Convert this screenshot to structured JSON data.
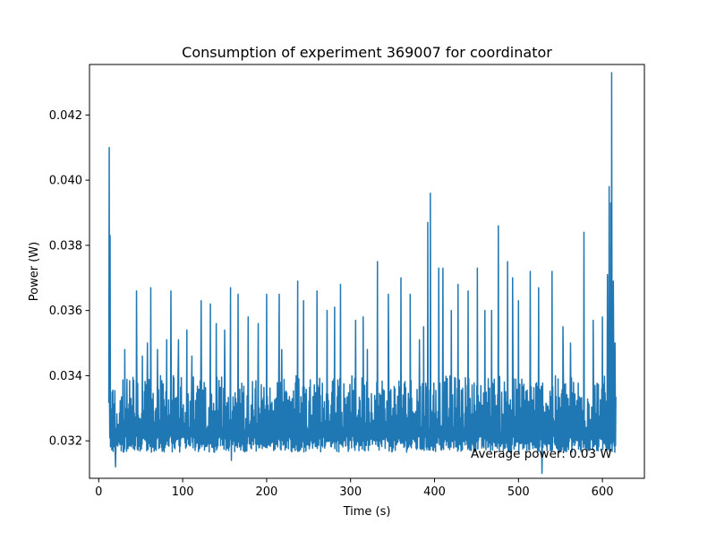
{
  "chart_data": {
    "type": "line",
    "title": "Consumption of experiment 369007 for coordinator",
    "xlabel": "Time (s)",
    "ylabel": "Power (W)",
    "xlim": [
      -11,
      650
    ],
    "ylim": [
      0.03085,
      0.04355
    ],
    "x_ticks": [
      0,
      100,
      200,
      300,
      400,
      500,
      600
    ],
    "y_ticks": [
      0.032,
      0.034,
      0.036,
      0.038,
      0.04,
      0.042
    ],
    "x_tick_labels": [
      "0",
      "100",
      "200",
      "300",
      "400",
      "500",
      "600"
    ],
    "y_tick_labels": [
      "0.032",
      "0.034",
      "0.036",
      "0.038",
      "0.040",
      "0.042"
    ],
    "annotation": "Average power: 0.03 W",
    "grid": false,
    "legend": "none",
    "series": [
      {
        "color": "#1f77b4",
        "x_start": 12,
        "x_end": 616,
        "baseline": 0.0318,
        "typical_peak": 0.0336,
        "peaks": [
          [
            12.5,
            0.041
          ],
          [
            13.5,
            0.0383
          ],
          [
            16,
            0.0335
          ],
          [
            20,
            0.0312
          ],
          [
            31,
            0.0348
          ],
          [
            45,
            0.0366
          ],
          [
            52,
            0.0346
          ],
          [
            58,
            0.035
          ],
          [
            62,
            0.0367
          ],
          [
            70,
            0.0348
          ],
          [
            81,
            0.0351
          ],
          [
            86,
            0.0366
          ],
          [
            95,
            0.0351
          ],
          [
            105,
            0.0354
          ],
          [
            111,
            0.0346
          ],
          [
            122,
            0.0363
          ],
          [
            133,
            0.0362
          ],
          [
            140,
            0.0356
          ],
          [
            150,
            0.0354
          ],
          [
            157,
            0.0367
          ],
          [
            158,
            0.0314
          ],
          [
            166,
            0.0365
          ],
          [
            178,
            0.0358
          ],
          [
            190,
            0.0356
          ],
          [
            200,
            0.0365
          ],
          [
            215,
            0.0365
          ],
          [
            218,
            0.0348
          ],
          [
            237,
            0.0369
          ],
          [
            244,
            0.0363
          ],
          [
            260,
            0.0366
          ],
          [
            272,
            0.036
          ],
          [
            281,
            0.0361
          ],
          [
            288,
            0.0368
          ],
          [
            306,
            0.0357
          ],
          [
            315,
            0.0358
          ],
          [
            320,
            0.0348
          ],
          [
            332,
            0.0375
          ],
          [
            345,
            0.0365
          ],
          [
            360,
            0.037
          ],
          [
            371,
            0.0365
          ],
          [
            382,
            0.0351
          ],
          [
            387,
            0.0355
          ],
          [
            392,
            0.0387
          ],
          [
            395,
            0.0396
          ],
          [
            405,
            0.0373
          ],
          [
            410,
            0.0373
          ],
          [
            420,
            0.036
          ],
          [
            428,
            0.0368
          ],
          [
            440,
            0.0366
          ],
          [
            451,
            0.0373
          ],
          [
            460,
            0.036
          ],
          [
            468,
            0.036
          ],
          [
            476,
            0.0386
          ],
          [
            487,
            0.0375
          ],
          [
            493,
            0.037
          ],
          [
            500,
            0.0363
          ],
          [
            514,
            0.0372
          ],
          [
            524,
            0.0367
          ],
          [
            528,
            0.031
          ],
          [
            540,
            0.0372
          ],
          [
            553,
            0.0355
          ],
          [
            562,
            0.035
          ],
          [
            578,
            0.0384
          ],
          [
            589,
            0.0357
          ],
          [
            600,
            0.0358
          ],
          [
            606,
            0.0371
          ],
          [
            608,
            0.0398
          ],
          [
            610,
            0.0393
          ],
          [
            611,
            0.0433
          ],
          [
            613,
            0.0369
          ],
          [
            615,
            0.035
          ]
        ]
      }
    ]
  }
}
